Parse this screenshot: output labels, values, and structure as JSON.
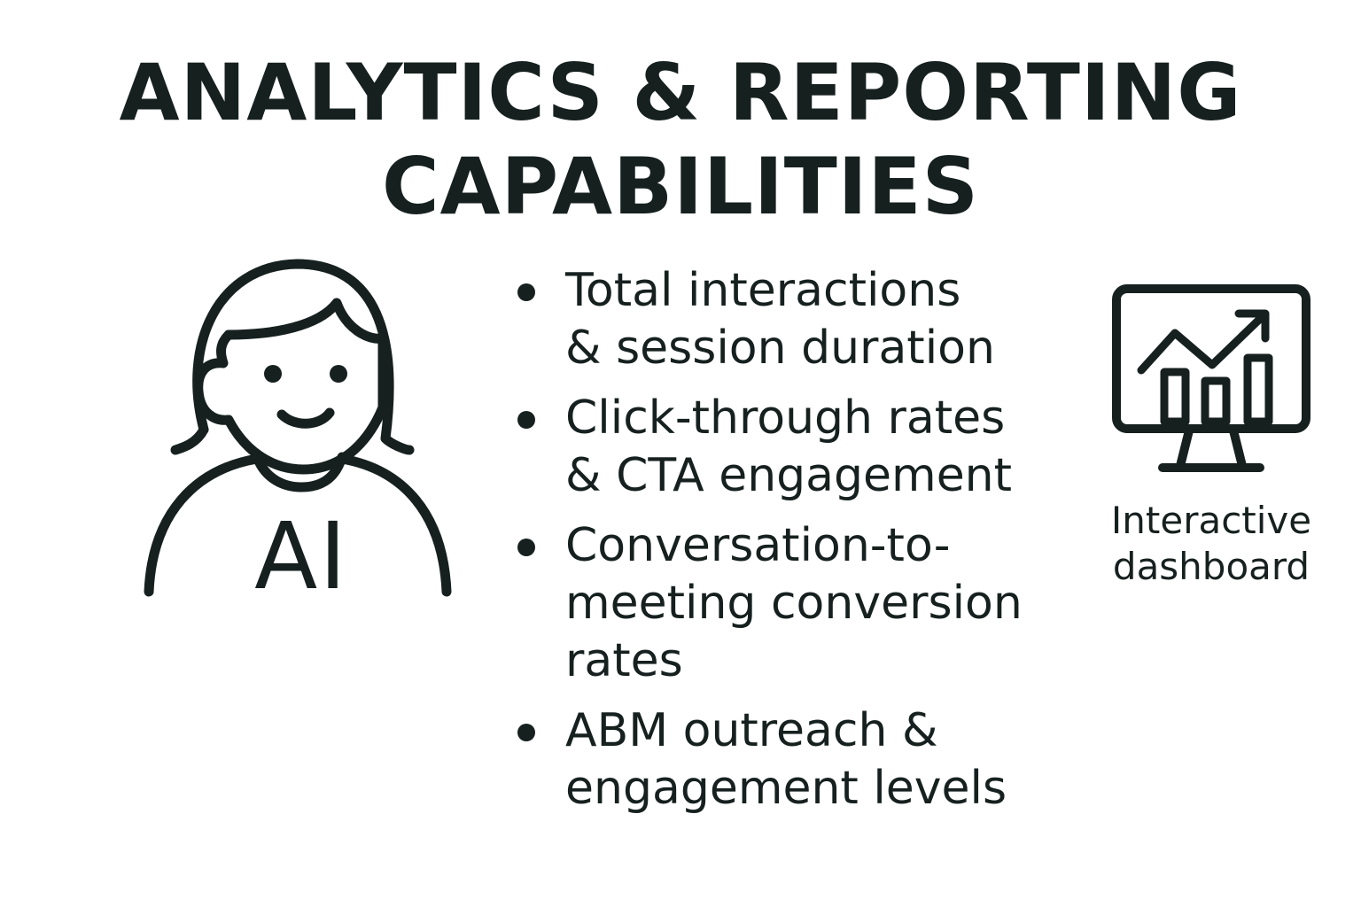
{
  "title": {
    "line1": "ANALYTICS & REPORTING",
    "line2": "CAPABILITIES"
  },
  "avatar": {
    "label": "AI",
    "icon": "person-avatar-icon"
  },
  "bullets": [
    {
      "line1": "Total interactions",
      "line2": "& session duration"
    },
    {
      "line1": "Click-through rates",
      "line2": "& CTA engagement"
    },
    {
      "line1": "Conversation-to-",
      "line2": "meeting conversion",
      "line3": "rates"
    },
    {
      "line1": "ABM outreach &",
      "line2": "engagement levels"
    }
  ],
  "dashboard": {
    "icon": "dashboard-monitor-icon",
    "label_line1": "Interactive",
    "label_line2": "dashboard"
  },
  "colors": {
    "ink": "#16211f",
    "background": "#ffffff"
  }
}
